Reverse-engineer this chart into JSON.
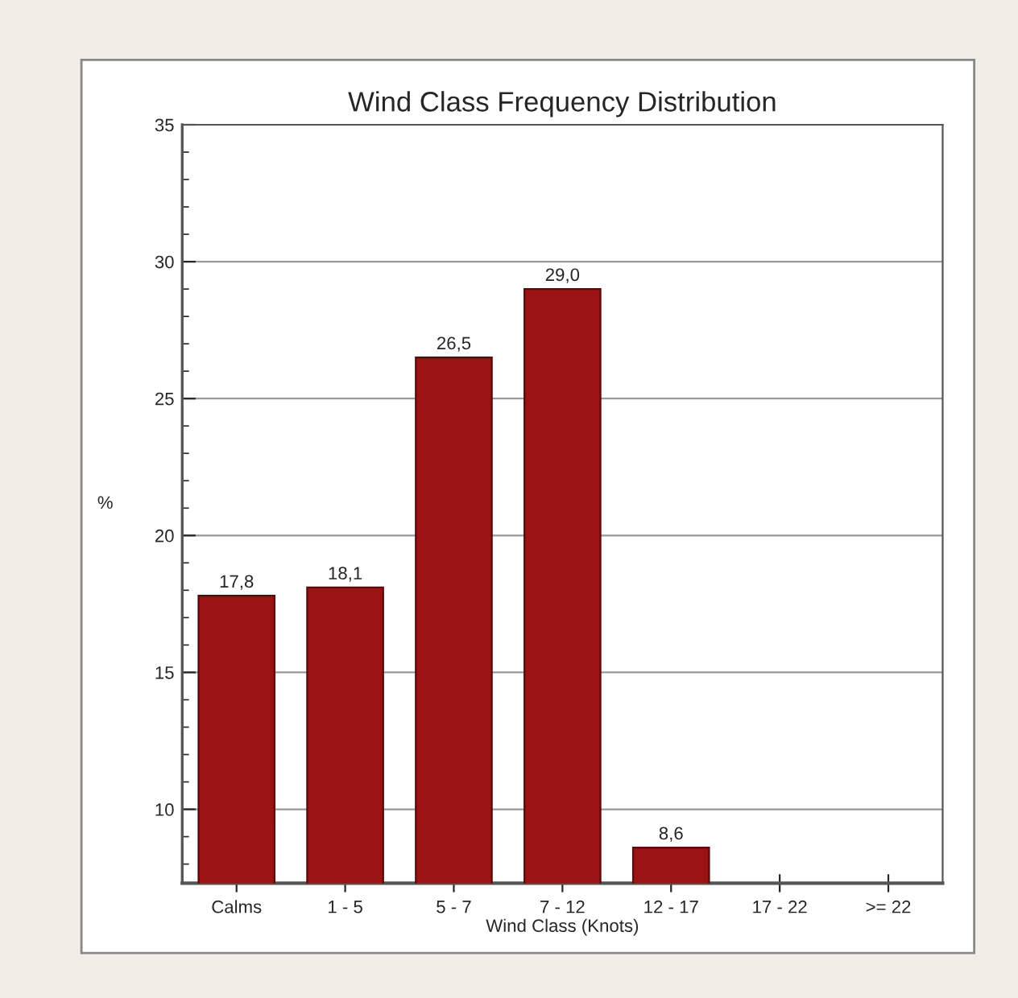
{
  "chart_data": {
    "type": "bar",
    "title": "Wind Class Frequency Distribution",
    "xlabel": "Wind Class (Knots)",
    "ylabel": "%",
    "categories": [
      "Calms",
      "1 - 5",
      "5 - 7",
      "7 - 12",
      "12 - 17",
      "17 - 22",
      ">= 22"
    ],
    "values": [
      17.8,
      18.1,
      26.5,
      29.0,
      8.6,
      null,
      null
    ],
    "value_labels": [
      "17,8",
      "18,1",
      "26,5",
      "29,0",
      "8,6",
      null,
      null
    ],
    "color": "#9b1414",
    "ylim": [
      7.3,
      35
    ],
    "yticks": [
      10,
      15,
      20,
      25,
      30,
      35
    ],
    "grid": "y"
  }
}
